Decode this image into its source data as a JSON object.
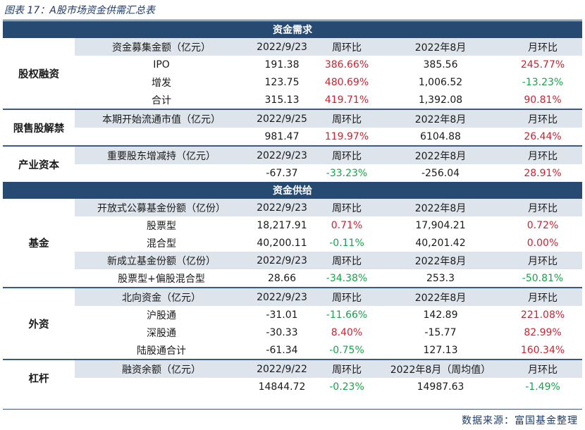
{
  "caption": "图表 17：A股市场资金供需汇总表",
  "source": "数据来源：富国基金整理",
  "demand": {
    "banner": "资金需求",
    "equity": {
      "category": "股权融资",
      "header": [
        "资金募集金额（亿元）",
        "2022/9/23",
        "周环比",
        "2022年8月",
        "月环比"
      ],
      "rows": [
        [
          "IPO",
          "191.38",
          "386.66%",
          "385.56",
          "245.77%"
        ],
        [
          "增发",
          "123.75",
          "480.69%",
          "1,006.52",
          "-13.23%"
        ],
        [
          "合计",
          "315.13",
          "419.71%",
          "1,392.08",
          "90.81%"
        ]
      ]
    },
    "unlock": {
      "category": "限售股解禁",
      "header": [
        "本期开始流通市值（亿元）",
        "2022/9/25",
        "周环比",
        "2022年8月",
        "月环比"
      ],
      "rows": [
        [
          "",
          "981.47",
          "119.97%",
          "6104.88",
          "26.44%"
        ]
      ]
    },
    "industrial": {
      "category": "产业资本",
      "header": [
        "重要股东增减持（亿元）",
        "2022/9/23",
        "周环比",
        "2022年8月",
        "月环比"
      ],
      "rows": [
        [
          "",
          "-67.37",
          "-33.23%",
          "-256.04",
          "28.91%"
        ]
      ]
    }
  },
  "supply": {
    "banner": "资金供给",
    "fund": {
      "category": "基金",
      "header1": [
        "开放式公募基金份额（亿份）",
        "2022/9/23",
        "周环比",
        "2022年8月",
        "月环比"
      ],
      "rows1": [
        [
          "股票型",
          "18,217.91",
          "0.71%",
          "17,904.21",
          "0.72%"
        ],
        [
          "混合型",
          "40,200.11",
          "-0.11%",
          "40,201.42",
          "0.00%"
        ]
      ],
      "header2": [
        "新成立基金份额（亿份）",
        "2022/9/23",
        "周环比",
        "2022年8月",
        "月环比"
      ],
      "rows2": [
        [
          "股票型+偏股混合型",
          "28.66",
          "-34.38%",
          "253.3",
          "-50.81%"
        ]
      ]
    },
    "foreign": {
      "category": "外资",
      "header": [
        "北向资金（亿元）",
        "2022/9/23",
        "周环比",
        "2022年8月",
        "月环比"
      ],
      "rows": [
        [
          "沪股通",
          "-31.01",
          "-11.66%",
          "142.89",
          "221.08%"
        ],
        [
          "深股通",
          "-30.33",
          "8.40%",
          "-15.77",
          "82.99%"
        ],
        [
          "陆股通合计",
          "-61.34",
          "-0.75%",
          "127.13",
          "160.34%"
        ]
      ]
    },
    "leverage": {
      "category": "杠杆",
      "header": [
        "融资余额（亿元）",
        "2022/9/22",
        "周环比",
        "2022年8月（周均值）",
        "月环比"
      ],
      "rows": [
        [
          "",
          "14844.72",
          "-0.23%",
          "14987.63",
          "-1.49%"
        ]
      ]
    }
  },
  "colors": {
    "banner": "#274a73",
    "header_row": "#dee4ec",
    "up": "#d02030",
    "down": "#16a34a"
  }
}
